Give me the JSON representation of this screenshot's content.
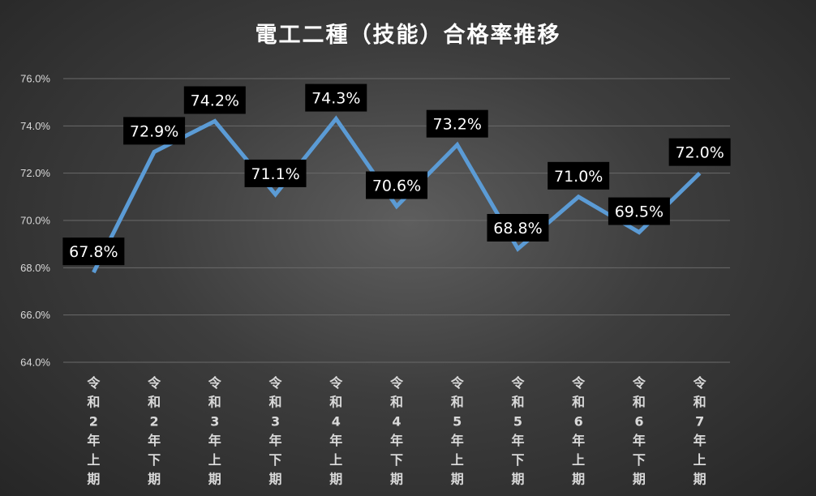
{
  "chart_data": {
    "type": "line",
    "title": "電工二種（技能）合格率推移",
    "categories": [
      "令和2年上期",
      "令和2年下期",
      "令和3年上期",
      "令和3年下期",
      "令和4年上期",
      "令和4年下期",
      "令和5年上期",
      "令和5年下期",
      "令和6年上期",
      "令和6年下期",
      "令和7年上期"
    ],
    "values": [
      67.8,
      72.9,
      74.2,
      71.1,
      74.3,
      70.6,
      73.2,
      68.8,
      71.0,
      69.5,
      72.0
    ],
    "data_labels": [
      "67.8%",
      "72.9%",
      "74.2%",
      "71.1%",
      "74.3%",
      "70.6%",
      "73.2%",
      "68.8%",
      "71.0%",
      "69.5%",
      "72.0%"
    ],
    "ylim": [
      64,
      76
    ],
    "yticks": [
      64,
      66,
      68,
      70,
      72,
      74,
      76
    ],
    "ytick_labels": [
      "64.0%",
      "66.0%",
      "68.0%",
      "70.0%",
      "72.0%",
      "74.0%",
      "76.0%"
    ],
    "xlabel": "",
    "ylabel": "",
    "grid": true,
    "legend": "none",
    "line_color": "#5b9bd5",
    "label_box_color": "#000000",
    "label_text_color": "#ffffff"
  }
}
